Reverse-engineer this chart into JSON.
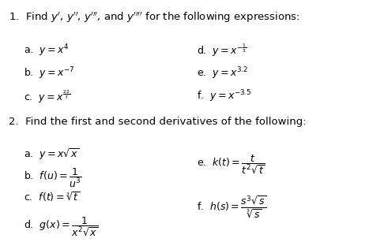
{
  "background_color": "#ffffff",
  "title1": "1.  Find $y^{\\prime}$, $y^{\\prime\\prime}$, $y^{\\prime\\prime\\prime}$, and $y^{\\prime\\prime\\prime\\prime}$ for the following expressions:",
  "title2": "2.  Find the first and second derivatives of the following:",
  "section1_left": [
    "a.  $y = x^{4}$",
    "b.  $y = x^{-7}$",
    "c.  $y = x^{\\frac{22}{7}}$"
  ],
  "section1_right": [
    "d.  $y = x^{-\\frac{1}{3}}$",
    "e.  $y = x^{3.2}$",
    "f.  $y = x^{-3.5}$"
  ],
  "section2_left": [
    "a.  $y = x\\sqrt{x}$",
    "b.  $f(u) = \\dfrac{1}{u^{3}}$",
    "c.  $f(t) = \\sqrt[3]{t}$",
    "d.  $g(x) = \\dfrac{1}{x^{2}\\sqrt{x}}$"
  ],
  "section2_right_e": "e.  $k(t) = \\dfrac{t}{t^{2}\\sqrt{t}}$",
  "section2_right_f": "f.  $h(s) = \\dfrac{s^{3}\\sqrt{s}}{\\sqrt[3]{s}}$"
}
